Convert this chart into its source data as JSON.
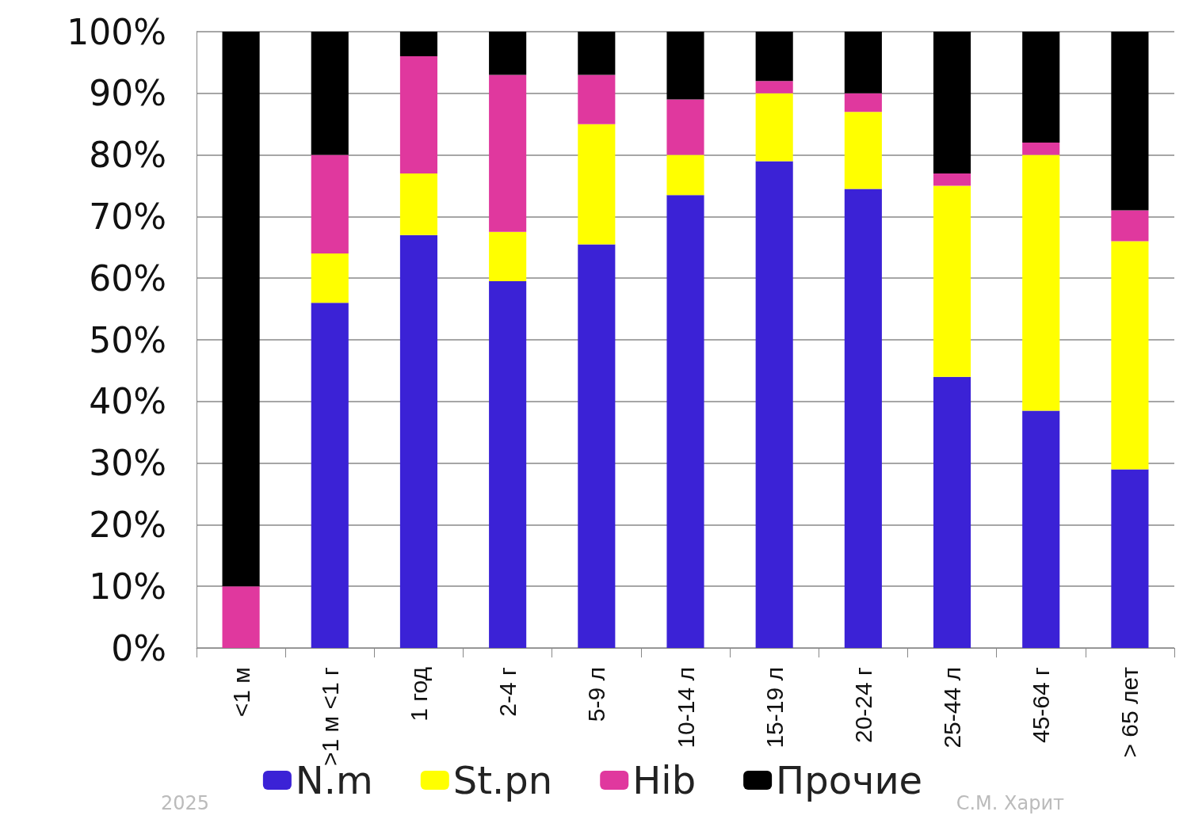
{
  "chart_data": {
    "type": "bar",
    "stacked": true,
    "categories": [
      "<1 м",
      ">1 м <1 г",
      "1 год",
      "2-4 г",
      "5-9 л",
      "10-14 л",
      "15-19 л",
      "20-24 г",
      "25-44 л",
      "45-64 г",
      "> 65 лет"
    ],
    "series": [
      {
        "name": "N.m",
        "color": "#3b22d6",
        "values": [
          0,
          56,
          67,
          59.5,
          65.5,
          73.5,
          79,
          74.5,
          44,
          38.5,
          29
        ]
      },
      {
        "name": "St.pn",
        "color": "#ffff00",
        "values": [
          0,
          8,
          10,
          8,
          19.5,
          6.5,
          11,
          12.5,
          31,
          41.5,
          37
        ]
      },
      {
        "name": "Hib",
        "color": "#e0389e",
        "values": [
          10,
          16,
          19,
          25.5,
          8,
          9,
          2,
          3,
          2,
          2,
          5
        ]
      },
      {
        "name": "Прочие",
        "color": "#000000",
        "values": [
          90,
          20,
          4,
          7,
          7,
          11,
          8,
          10,
          23,
          18,
          29
        ]
      }
    ],
    "ylim": [
      0,
      100
    ],
    "yticks": [
      {
        "value": 0,
        "label": "0%"
      },
      {
        "value": 10,
        "label": "10%"
      },
      {
        "value": 20,
        "label": "20%"
      },
      {
        "value": 30,
        "label": "30%"
      },
      {
        "value": 40,
        "label": "40%"
      },
      {
        "value": 50,
        "label": "50%"
      },
      {
        "value": 60,
        "label": "60%"
      },
      {
        "value": 70,
        "label": "70%"
      },
      {
        "value": 80,
        "label": "80%"
      },
      {
        "value": 90,
        "label": "90%"
      },
      {
        "value": 100,
        "label": "100%"
      }
    ],
    "grid": "y",
    "legend": "bottom",
    "annotations": [
      "2025",
      "С.М. Харит"
    ]
  }
}
